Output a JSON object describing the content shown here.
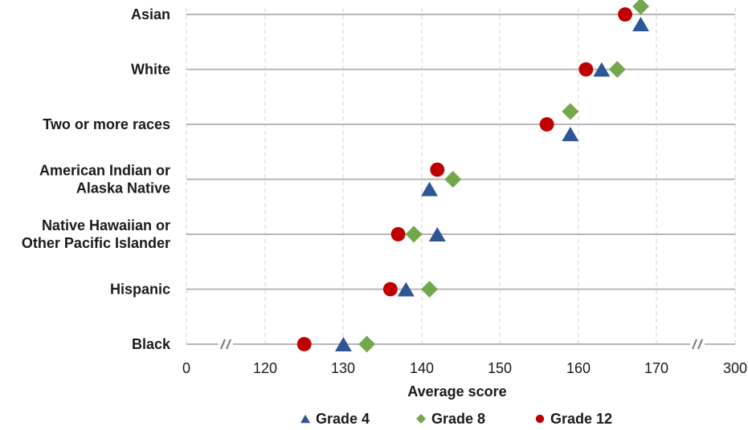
{
  "chart_data": {
    "type": "scatter",
    "title": "",
    "xlabel": "Average score",
    "ylabel": "",
    "x_ticks": [
      "0",
      "120",
      "130",
      "140",
      "150",
      "160",
      "170",
      "300"
    ],
    "axis_breaks": [
      "0–115",
      "175–300"
    ],
    "xlim_visible": [
      115,
      175
    ],
    "grid": true,
    "legend_position": "bottom",
    "categories": [
      [
        "Asian"
      ],
      [
        "White"
      ],
      [
        "Two or more races"
      ],
      [
        "American Indian or",
        "Alaska Native"
      ],
      [
        "Native Hawaiian or",
        "Other Pacific Islander"
      ],
      [
        "Hispanic"
      ],
      [
        "Black"
      ]
    ],
    "series": [
      {
        "name": "Grade 4",
        "marker": "triangle",
        "color": "#2e5596",
        "values": [
          168,
          163,
          159,
          141,
          142,
          138,
          130
        ]
      },
      {
        "name": "Grade 8",
        "marker": "diamond",
        "color": "#72a84b",
        "values": [
          168,
          165,
          159,
          144,
          139,
          141,
          133
        ]
      },
      {
        "name": "Grade 12",
        "marker": "circle",
        "color": "#c00000",
        "values": [
          166,
          161,
          156,
          142,
          137,
          136,
          125
        ]
      }
    ]
  }
}
